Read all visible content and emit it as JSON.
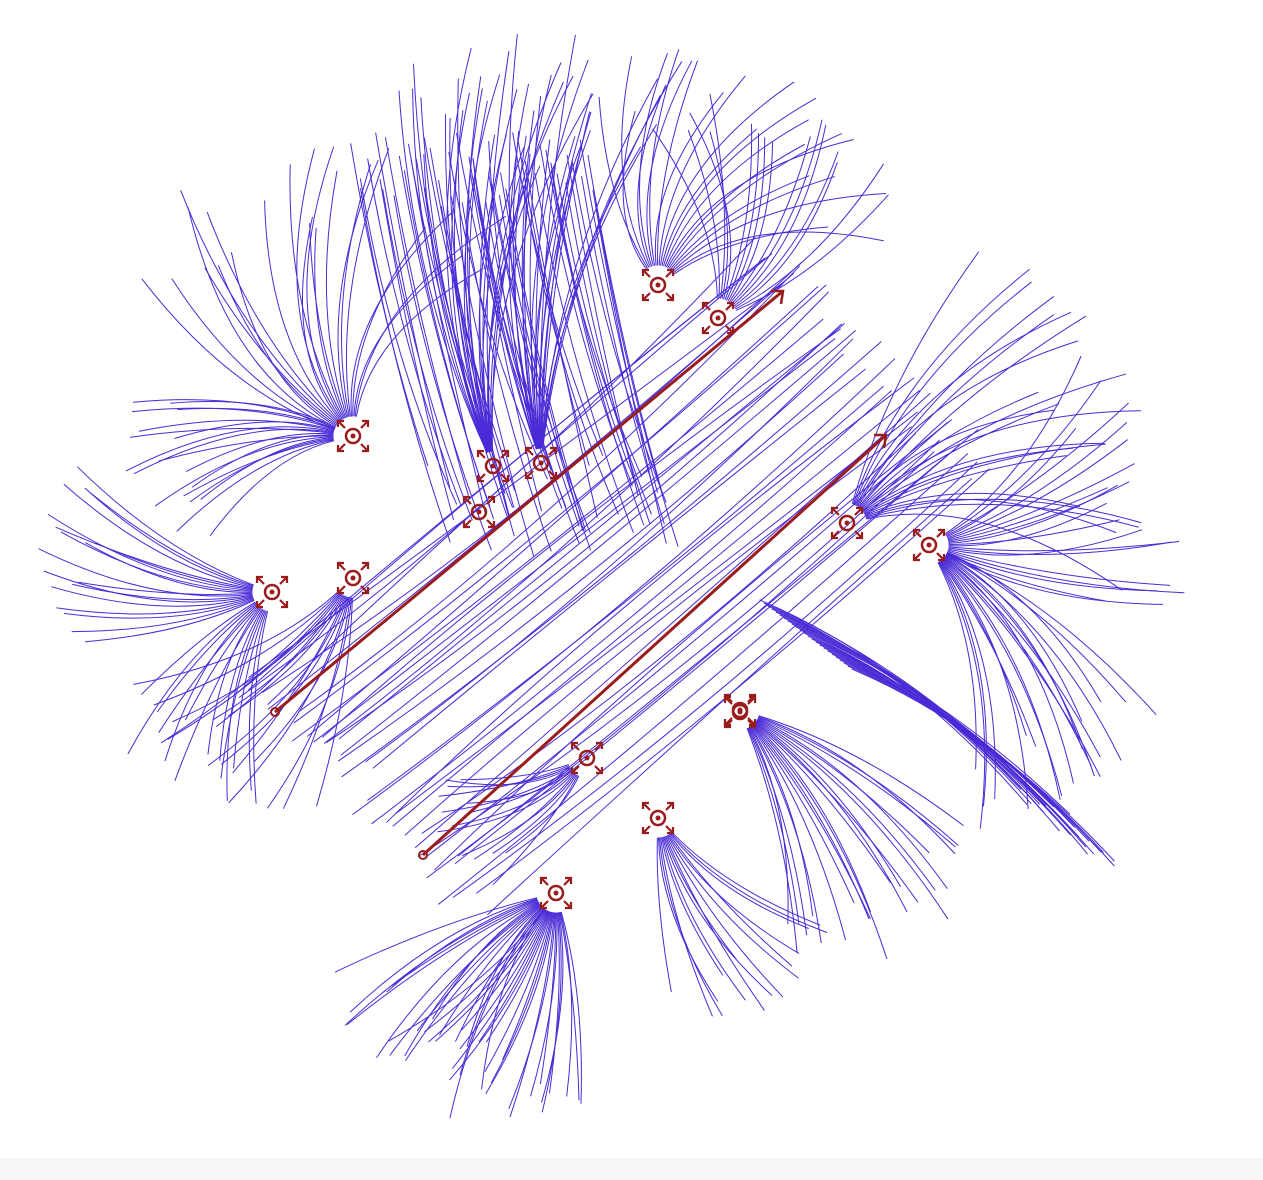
{
  "diagram": {
    "type": "vector-field-streamlines",
    "colors": {
      "streamline": "#4a2bd6",
      "marker": "#9b1c1c",
      "background": "#ffffff",
      "bottom_bar": "#f6f6f6"
    },
    "sources": [
      {
        "id": "s1",
        "icon": "source-expand-icon"
      },
      {
        "id": "s2",
        "icon": "source-expand-icon"
      },
      {
        "id": "s3",
        "icon": "source-expand-icon"
      },
      {
        "id": "s4",
        "icon": "source-expand-icon"
      },
      {
        "id": "s5",
        "icon": "source-expand-icon"
      },
      {
        "id": "s6",
        "icon": "source-expand-icon"
      },
      {
        "id": "s7",
        "icon": "source-expand-icon"
      },
      {
        "id": "s8",
        "icon": "source-expand-icon"
      },
      {
        "id": "s9",
        "icon": "source-expand-icon"
      },
      {
        "id": "s10",
        "icon": "source-expand-icon"
      },
      {
        "id": "s11",
        "icon": "source-expand-icon"
      },
      {
        "id": "s12",
        "icon": "source-expand-icon"
      },
      {
        "id": "s13",
        "icon": "source-expand-icon"
      },
      {
        "id": "s14",
        "icon": "source-expand-icon"
      },
      {
        "id": "s15",
        "icon": "source-expand-icon"
      }
    ],
    "arrows": [
      {
        "id": "a1",
        "icon": "direction-arrow"
      },
      {
        "id": "a2",
        "icon": "direction-arrow"
      }
    ]
  }
}
